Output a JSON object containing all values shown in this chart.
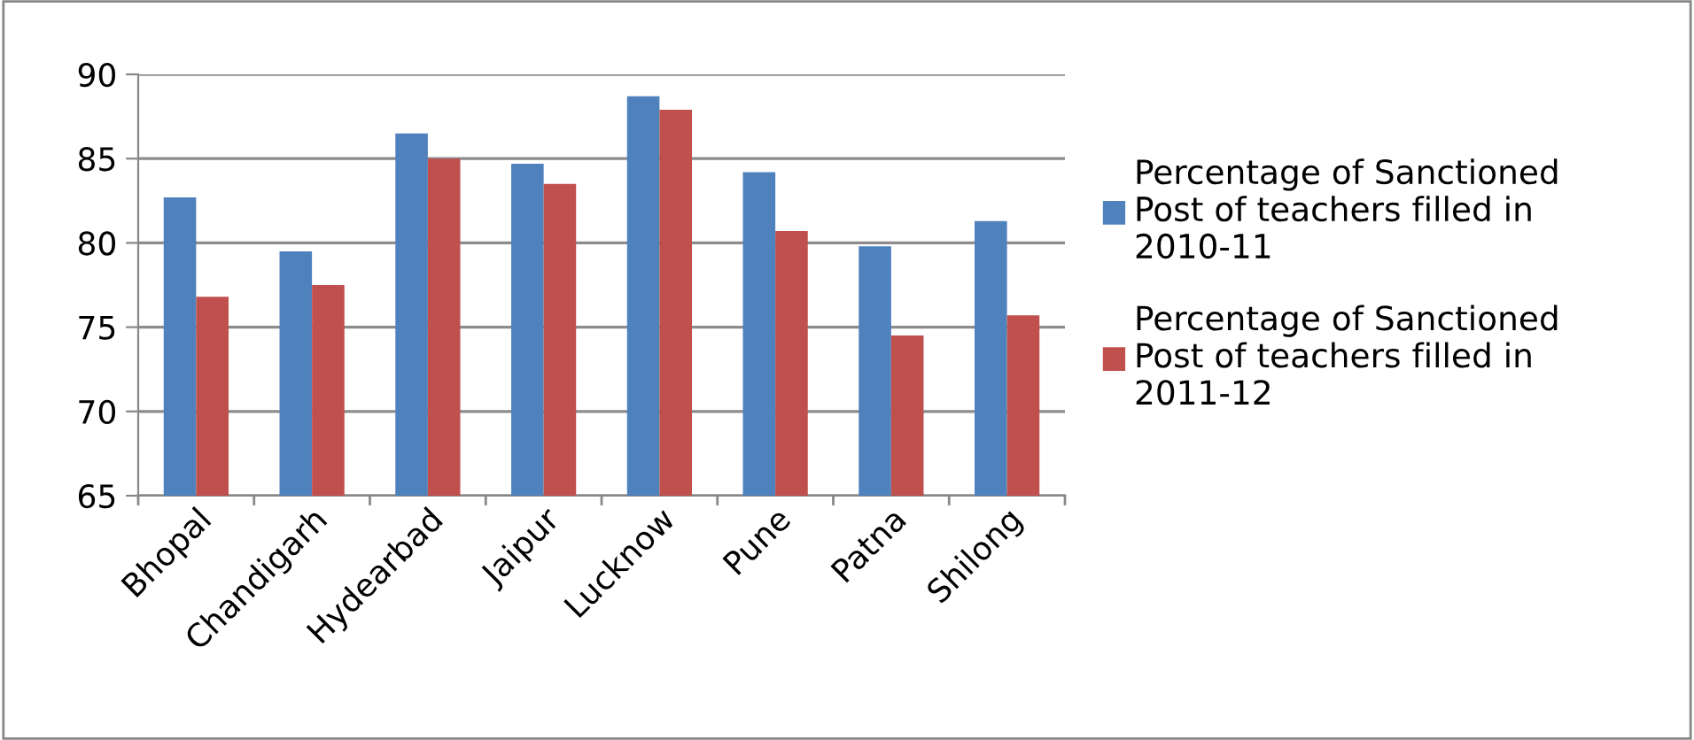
{
  "chart_data": {
    "type": "bar",
    "categories": [
      "Bhopal",
      "Chandigarh",
      "Hydearbad",
      "Jaipur",
      "Lucknow",
      "Pune",
      "Patna",
      "Shilong"
    ],
    "series": [
      {
        "name": "Percentage of Sanctioned Post of teachers filled in 2010-11",
        "color": "#4f81bd",
        "values": [
          82.7,
          79.5,
          86.5,
          84.7,
          88.7,
          84.2,
          79.8,
          81.3
        ]
      },
      {
        "name": "Percentage of Sanctioned Post of teachers filled in 2011-12",
        "color": "#c0504d",
        "values": [
          76.8,
          77.5,
          85.0,
          83.5,
          87.9,
          80.7,
          74.5,
          75.7
        ]
      }
    ],
    "ylim": [
      65,
      90
    ],
    "yticks": [
      65,
      70,
      75,
      80,
      85,
      90
    ],
    "grid": "y",
    "legend": "right"
  }
}
